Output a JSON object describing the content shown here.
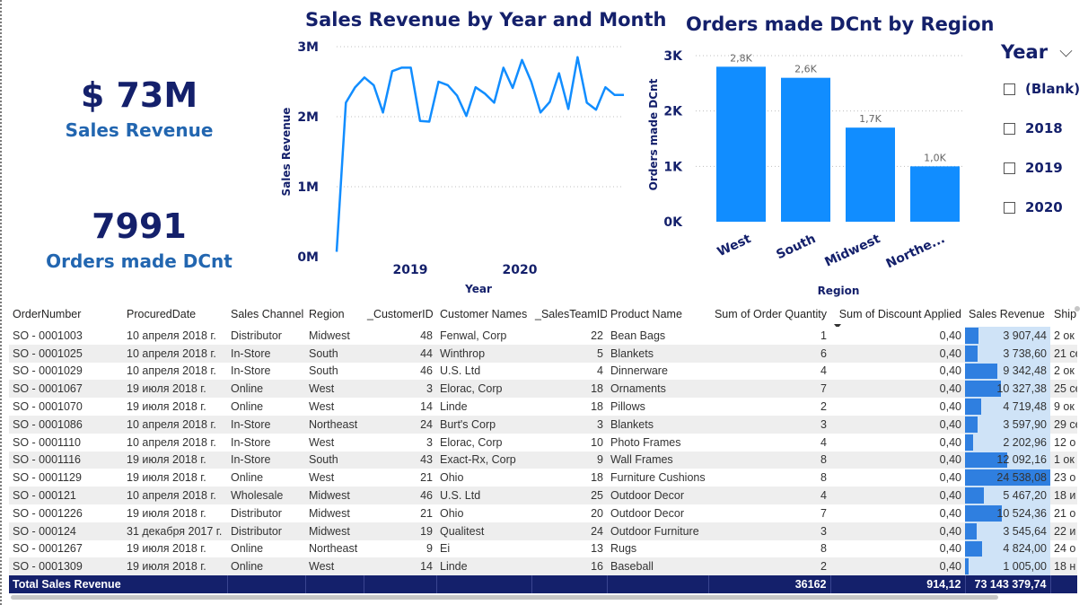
{
  "kpis": {
    "revenue": {
      "value": "$ 73M",
      "label": "Sales Revenue"
    },
    "orders": {
      "value": "7991",
      "label": "Orders made DCnt"
    }
  },
  "chart_data": [
    {
      "type": "line",
      "title": "Sales Revenue by Year and Month",
      "xlabel": "Year",
      "ylabel": "Sales Revenue",
      "y_ticks": [
        "0M",
        "1M",
        "2M",
        "3M"
      ],
      "x_ticks": [
        "2019",
        "2020"
      ],
      "ylim": [
        0,
        3
      ],
      "color": "#118dff",
      "series": [
        {
          "values": [
            0.07,
            2.2,
            2.42,
            2.56,
            2.45,
            2.06,
            2.65,
            2.7,
            2.7,
            1.94,
            1.93,
            2.5,
            2.45,
            2.3,
            2.01,
            2.42,
            2.33,
            2.2,
            2.7,
            2.41,
            2.81,
            2.5,
            2.06,
            2.21,
            2.62,
            2.11,
            2.85,
            2.2,
            2.1,
            2.42,
            2.31,
            2.31
          ]
        }
      ]
    },
    {
      "type": "bar",
      "title": "Orders made DCnt by Region",
      "xlabel": "Region",
      "ylabel": "Orders made DCnt",
      "y_ticks": [
        "0K",
        "1K",
        "2K",
        "3K"
      ],
      "ylim": [
        0,
        3000
      ],
      "color": "#118dff",
      "categories": [
        "West",
        "South",
        "Midwest",
        "Northe..."
      ],
      "values": [
        2800,
        2600,
        1700,
        1000
      ],
      "data_labels": [
        "2,8K",
        "2,6K",
        "1,7K",
        "1,0K"
      ]
    }
  ],
  "slicer": {
    "title": "Year",
    "options": [
      "(Blank)",
      "2018",
      "2019",
      "2020"
    ]
  },
  "table": {
    "columns": [
      "OrderNumber",
      "ProcuredDate",
      "Sales Channel",
      "Region",
      "_CustomerID",
      "Customer Names",
      "_SalesTeamID",
      "Product Name",
      "Sum of Order Quantity",
      "Sum of Discount Applied",
      "Sales Revenue",
      "Ship"
    ],
    "rows": [
      [
        "SO - 0001003",
        "10 апреля 2018 г.",
        "Distributor",
        "Midwest",
        "48",
        "Fenwal, Corp",
        "22",
        "Bean Bags",
        "1",
        "0,40",
        "3 907,44",
        "2 ок"
      ],
      [
        "SO - 0001025",
        "10 апреля 2018 г.",
        "In-Store",
        "South",
        "44",
        "Winthrop",
        "5",
        "Blankets",
        "6",
        "0,40",
        "3 738,60",
        "21 се"
      ],
      [
        "SO - 0001029",
        "10 апреля 2018 г.",
        "In-Store",
        "South",
        "46",
        "U.S. Ltd",
        "4",
        "Dinnerware",
        "4",
        "0,40",
        "9 342,48",
        "2 ок"
      ],
      [
        "SO - 0001067",
        "19 июля 2018 г.",
        "Online",
        "West",
        "3",
        "Elorac, Corp",
        "18",
        "Ornaments",
        "7",
        "0,40",
        "10 327,38",
        "25 се"
      ],
      [
        "SO - 0001070",
        "19 июля 2018 г.",
        "Online",
        "West",
        "14",
        "Linde",
        "18",
        "Pillows",
        "2",
        "0,40",
        "4 719,48",
        "9 ок"
      ],
      [
        "SO - 0001086",
        "10 апреля 2018 г.",
        "In-Store",
        "Northeast",
        "24",
        "Burt's Corp",
        "3",
        "Blankets",
        "3",
        "0,40",
        "3 597,90",
        "29 се"
      ],
      [
        "SO - 0001110",
        "10 апреля 2018 г.",
        "In-Store",
        "West",
        "3",
        "Elorac, Corp",
        "10",
        "Photo Frames",
        "4",
        "0,40",
        "2 202,96",
        "12 о"
      ],
      [
        "SO - 0001116",
        "19 июля 2018 г.",
        "In-Store",
        "South",
        "43",
        "Exact-Rx, Corp",
        "9",
        "Wall Frames",
        "8",
        "0,40",
        "12 092,16",
        "1 ок"
      ],
      [
        "SO - 0001129",
        "19 июля 2018 г.",
        "Online",
        "West",
        "21",
        "Ohio",
        "18",
        "Furniture Cushions",
        "8",
        "0,40",
        "24 538,08",
        "23 о"
      ],
      [
        "SO - 000121",
        "10 апреля 2018 г.",
        "Wholesale",
        "Midwest",
        "46",
        "U.S. Ltd",
        "25",
        "Outdoor Decor",
        "4",
        "0,40",
        "5 467,20",
        "18 и"
      ],
      [
        "SO - 0001226",
        "19 июля 2018 г.",
        "Distributor",
        "Midwest",
        "21",
        "Ohio",
        "20",
        "Outdoor Decor",
        "7",
        "0,40",
        "10 524,36",
        "21 о"
      ],
      [
        "SO - 000124",
        "31 декабря 2017 г.",
        "Distributor",
        "Midwest",
        "19",
        "Qualitest",
        "24",
        "Outdoor Furniture",
        "3",
        "0,40",
        "3 545,64",
        "22 и"
      ],
      [
        "SO - 0001267",
        "19 июля 2018 г.",
        "Online",
        "Northeast",
        "9",
        "Ei",
        "13",
        "Rugs",
        "8",
        "0,40",
        "4 824,00",
        "24 о"
      ],
      [
        "SO - 0001309",
        "19 июля 2018 г.",
        "Online",
        "West",
        "14",
        "Linde",
        "16",
        "Baseball",
        "2",
        "0,40",
        "1 005,00",
        "18 н"
      ]
    ],
    "revenue_fractions": [
      0.16,
      0.15,
      0.38,
      0.42,
      0.19,
      0.15,
      0.09,
      0.49,
      1.0,
      0.22,
      0.43,
      0.14,
      0.2,
      0.04
    ],
    "bar_color": "#2f7fe0",
    "totals": {
      "label": "Total Sales Revenue",
      "quantity": "36162",
      "discount": "914,12",
      "revenue": "73 143 379,74"
    }
  }
}
